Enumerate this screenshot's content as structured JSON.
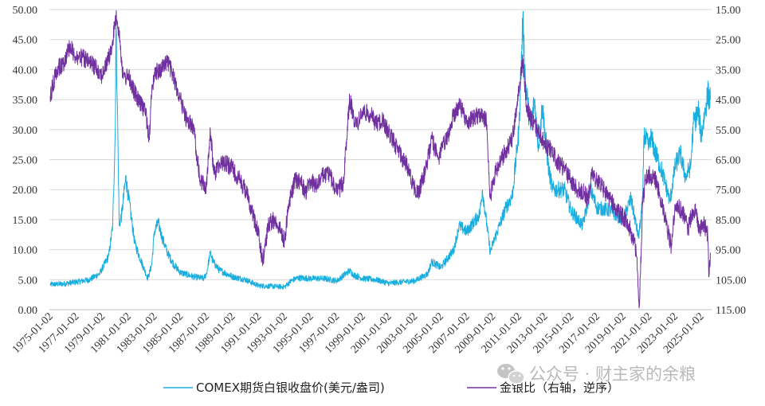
{
  "chart_data": {
    "type": "line",
    "title": "",
    "xlabel": "",
    "ylabel": "",
    "y_left": {
      "min": 0,
      "max": 50,
      "step": 5,
      "tick_labels": [
        "0.00",
        "5.00",
        "10.00",
        "15.00",
        "20.00",
        "25.00",
        "30.00",
        "35.00",
        "40.00",
        "45.00",
        "50.00"
      ]
    },
    "y_right": {
      "min": 15,
      "max": 115,
      "step": 10,
      "reversed": true,
      "tick_labels": [
        "15.00",
        "25.00",
        "35.00",
        "45.00",
        "55.00",
        "65.00",
        "75.00",
        "85.00",
        "95.00",
        "105.00",
        "115.00"
      ]
    },
    "x_axis": {
      "start_year": 1975,
      "end_year": 2025.8,
      "tick_labels": [
        "1975-01-02",
        "1977-01-02",
        "1979-01-02",
        "1981-01-02",
        "1983-01-02",
        "1985-01-02",
        "1987-01-02",
        "1989-01-02",
        "1991-01-02",
        "1993-01-02",
        "1995-01-02",
        "1997-01-02",
        "1999-01-02",
        "2001-01-02",
        "2003-01-02",
        "2005-01-02",
        "2007-01-02",
        "2009-01-02",
        "2011-01-02",
        "2013-01-02",
        "2015-01-02",
        "2017-01-02",
        "2019-01-02",
        "2021-01-02",
        "2023-01-02",
        "2025-01-02"
      ]
    },
    "grid": true,
    "legend_position": "bottom",
    "series": [
      {
        "name": "COMEX期货白银收盘价(美元/盎司)",
        "axis": "left",
        "color": "#1aaedf",
        "points": [
          [
            1975.0,
            4.2
          ],
          [
            1976.0,
            4.3
          ],
          [
            1977.0,
            4.6
          ],
          [
            1978.0,
            5.0
          ],
          [
            1978.8,
            6.0
          ],
          [
            1979.5,
            9.0
          ],
          [
            1979.8,
            14.0
          ],
          [
            1980.0,
            30.0
          ],
          [
            1980.05,
            48.0
          ],
          [
            1980.15,
            35.0
          ],
          [
            1980.3,
            14.0
          ],
          [
            1980.5,
            16.0
          ],
          [
            1980.8,
            22.0
          ],
          [
            1981.0,
            19.0
          ],
          [
            1981.5,
            11.0
          ],
          [
            1982.0,
            8.0
          ],
          [
            1982.5,
            5.2
          ],
          [
            1982.8,
            7.5
          ],
          [
            1983.0,
            13.0
          ],
          [
            1983.3,
            14.5
          ],
          [
            1983.6,
            12.0
          ],
          [
            1984.0,
            9.5
          ],
          [
            1984.5,
            7.5
          ],
          [
            1985.0,
            6.2
          ],
          [
            1986.0,
            5.5
          ],
          [
            1986.8,
            5.2
          ],
          [
            1987.0,
            6.0
          ],
          [
            1987.3,
            9.5
          ],
          [
            1987.5,
            8.0
          ],
          [
            1988.0,
            6.6
          ],
          [
            1989.0,
            5.5
          ],
          [
            1990.0,
            5.0
          ],
          [
            1991.0,
            4.0
          ],
          [
            1992.0,
            3.9
          ],
          [
            1993.0,
            3.8
          ],
          [
            1993.5,
            4.8
          ],
          [
            1994.0,
            5.3
          ],
          [
            1995.0,
            5.2
          ],
          [
            1996.0,
            5.2
          ],
          [
            1997.0,
            4.8
          ],
          [
            1998.0,
            6.5
          ],
          [
            1998.3,
            5.8
          ],
          [
            1999.0,
            5.2
          ],
          [
            2000.0,
            5.0
          ],
          [
            2001.0,
            4.4
          ],
          [
            2002.0,
            4.6
          ],
          [
            2003.0,
            4.8
          ],
          [
            2004.0,
            6.0
          ],
          [
            2004.3,
            8.0
          ],
          [
            2005.0,
            7.0
          ],
          [
            2006.0,
            10.0
          ],
          [
            2006.4,
            14.0
          ],
          [
            2007.0,
            13.0
          ],
          [
            2008.0,
            16.0
          ],
          [
            2008.2,
            20.0
          ],
          [
            2008.8,
            9.5
          ],
          [
            2009.0,
            11.0
          ],
          [
            2009.5,
            14.0
          ],
          [
            2010.0,
            17.0
          ],
          [
            2010.5,
            19.0
          ],
          [
            2011.0,
            30.0
          ],
          [
            2011.3,
            48.5
          ],
          [
            2011.5,
            38.0
          ],
          [
            2011.9,
            30.0
          ],
          [
            2012.2,
            35.0
          ],
          [
            2012.5,
            27.0
          ],
          [
            2012.8,
            34.0
          ],
          [
            2013.3,
            23.0
          ],
          [
            2013.6,
            20.0
          ],
          [
            2014.0,
            20.0
          ],
          [
            2014.5,
            20.0
          ],
          [
            2015.0,
            16.5
          ],
          [
            2015.9,
            14.0
          ],
          [
            2016.5,
            20.0
          ],
          [
            2017.0,
            17.0
          ],
          [
            2018.0,
            16.5
          ],
          [
            2019.0,
            15.0
          ],
          [
            2019.6,
            18.5
          ],
          [
            2020.2,
            12.0
          ],
          [
            2020.5,
            18.0
          ],
          [
            2020.6,
            29.0
          ],
          [
            2021.0,
            27.0
          ],
          [
            2021.1,
            29.0
          ],
          [
            2021.5,
            26.0
          ],
          [
            2022.0,
            23.0
          ],
          [
            2022.6,
            18.0
          ],
          [
            2023.0,
            24.0
          ],
          [
            2023.4,
            26.0
          ],
          [
            2023.8,
            22.0
          ],
          [
            2024.2,
            24.0
          ],
          [
            2024.4,
            31.0
          ],
          [
            2024.8,
            33.0
          ],
          [
            2025.0,
            29.0
          ],
          [
            2025.3,
            33.0
          ],
          [
            2025.5,
            36.0
          ],
          [
            2025.7,
            35.0
          ]
        ]
      },
      {
        "name": "金银比（右轴，逆序）",
        "axis": "right",
        "color": "#7030a0",
        "points": [
          [
            1975.0,
            44.0
          ],
          [
            1975.5,
            35.0
          ],
          [
            1976.0,
            33.0
          ],
          [
            1976.5,
            27.0
          ],
          [
            1977.0,
            31.0
          ],
          [
            1977.5,
            31.0
          ],
          [
            1978.0,
            33.0
          ],
          [
            1978.5,
            34.0
          ],
          [
            1979.0,
            37.0
          ],
          [
            1979.5,
            31.0
          ],
          [
            1979.8,
            27.0
          ],
          [
            1980.0,
            17.0
          ],
          [
            1980.3,
            22.0
          ],
          [
            1980.6,
            38.0
          ],
          [
            1981.0,
            37.0
          ],
          [
            1981.5,
            43.0
          ],
          [
            1982.0,
            47.0
          ],
          [
            1982.3,
            48.0
          ],
          [
            1982.6,
            58.0
          ],
          [
            1982.8,
            43.0
          ],
          [
            1983.0,
            36.0
          ],
          [
            1983.5,
            35.0
          ],
          [
            1984.0,
            32.0
          ],
          [
            1984.5,
            38.0
          ],
          [
            1985.0,
            45.0
          ],
          [
            1985.5,
            52.0
          ],
          [
            1986.0,
            54.0
          ],
          [
            1986.5,
            72.0
          ],
          [
            1987.0,
            74.0
          ],
          [
            1987.3,
            56.0
          ],
          [
            1987.6,
            70.0
          ],
          [
            1988.0,
            66.0
          ],
          [
            1988.5,
            66.0
          ],
          [
            1989.0,
            68.0
          ],
          [
            1990.0,
            75.0
          ],
          [
            1990.5,
            82.0
          ],
          [
            1991.0,
            90.0
          ],
          [
            1991.3,
            99.0
          ],
          [
            1991.8,
            86.0
          ],
          [
            1992.3,
            85.0
          ],
          [
            1992.8,
            90.0
          ],
          [
            1993.0,
            92.0
          ],
          [
            1993.3,
            80.0
          ],
          [
            1993.8,
            72.0
          ],
          [
            1994.2,
            72.0
          ],
          [
            1994.6,
            76.0
          ],
          [
            1995.0,
            72.0
          ],
          [
            1995.4,
            74.0
          ],
          [
            1996.0,
            70.0
          ],
          [
            1996.5,
            70.0
          ],
          [
            1997.0,
            76.0
          ],
          [
            1997.5,
            73.0
          ],
          [
            1998.0,
            45.0
          ],
          [
            1998.5,
            54.0
          ],
          [
            1999.0,
            49.0
          ],
          [
            1999.6,
            50.0
          ],
          [
            2000.0,
            53.0
          ],
          [
            2000.5,
            52.0
          ],
          [
            2001.0,
            56.0
          ],
          [
            2001.5,
            60.0
          ],
          [
            2002.0,
            64.0
          ],
          [
            2002.5,
            68.0
          ],
          [
            2003.0,
            75.0
          ],
          [
            2003.3,
            76.0
          ],
          [
            2003.8,
            69.0
          ],
          [
            2004.3,
            58.0
          ],
          [
            2004.8,
            65.0
          ],
          [
            2005.0,
            62.0
          ],
          [
            2005.5,
            58.0
          ],
          [
            2006.0,
            50.0
          ],
          [
            2006.5,
            47.0
          ],
          [
            2007.0,
            53.0
          ],
          [
            2007.5,
            51.0
          ],
          [
            2008.0,
            50.0
          ],
          [
            2008.5,
            52.0
          ],
          [
            2008.8,
            78.0
          ],
          [
            2009.0,
            72.0
          ],
          [
            2009.5,
            66.0
          ],
          [
            2010.0,
            62.0
          ],
          [
            2010.5,
            58.0
          ],
          [
            2011.0,
            42.0
          ],
          [
            2011.3,
            32.0
          ],
          [
            2011.6,
            48.0
          ],
          [
            2012.0,
            52.0
          ],
          [
            2012.5,
            56.0
          ],
          [
            2013.0,
            60.0
          ],
          [
            2013.5,
            62.0
          ],
          [
            2014.0,
            66.0
          ],
          [
            2014.5,
            68.0
          ],
          [
            2015.0,
            72.0
          ],
          [
            2015.5,
            75.0
          ],
          [
            2016.0,
            76.0
          ],
          [
            2016.3,
            78.0
          ],
          [
            2016.6,
            70.0
          ],
          [
            2017.0,
            72.0
          ],
          [
            2017.5,
            75.0
          ],
          [
            2018.0,
            78.0
          ],
          [
            2018.5,
            82.0
          ],
          [
            2019.0,
            84.0
          ],
          [
            2019.5,
            88.0
          ],
          [
            2020.0,
            95.0
          ],
          [
            2020.25,
            114.0
          ],
          [
            2020.5,
            80.0
          ],
          [
            2020.7,
            72.0
          ],
          [
            2021.0,
            70.0
          ],
          [
            2021.5,
            72.0
          ],
          [
            2022.0,
            80.0
          ],
          [
            2022.5,
            90.0
          ],
          [
            2022.7,
            94.0
          ],
          [
            2023.0,
            80.0
          ],
          [
            2023.5,
            82.0
          ],
          [
            2024.0,
            88.0
          ],
          [
            2024.2,
            84.0
          ],
          [
            2024.5,
            82.0
          ],
          [
            2024.9,
            88.0
          ],
          [
            2025.2,
            86.0
          ],
          [
            2025.5,
            90.0
          ],
          [
            2025.6,
            104.0
          ],
          [
            2025.7,
            96.0
          ]
        ]
      }
    ]
  },
  "legend": [
    {
      "label": "COMEX期货白银收盘价(美元/盎司)",
      "color": "#1aaedf"
    },
    {
      "label": "金银比（右轴，逆序）",
      "color": "#7030a0"
    }
  ],
  "watermark": {
    "text": "公众号 · 财主家的余粮",
    "icon": "wechat-icon"
  }
}
